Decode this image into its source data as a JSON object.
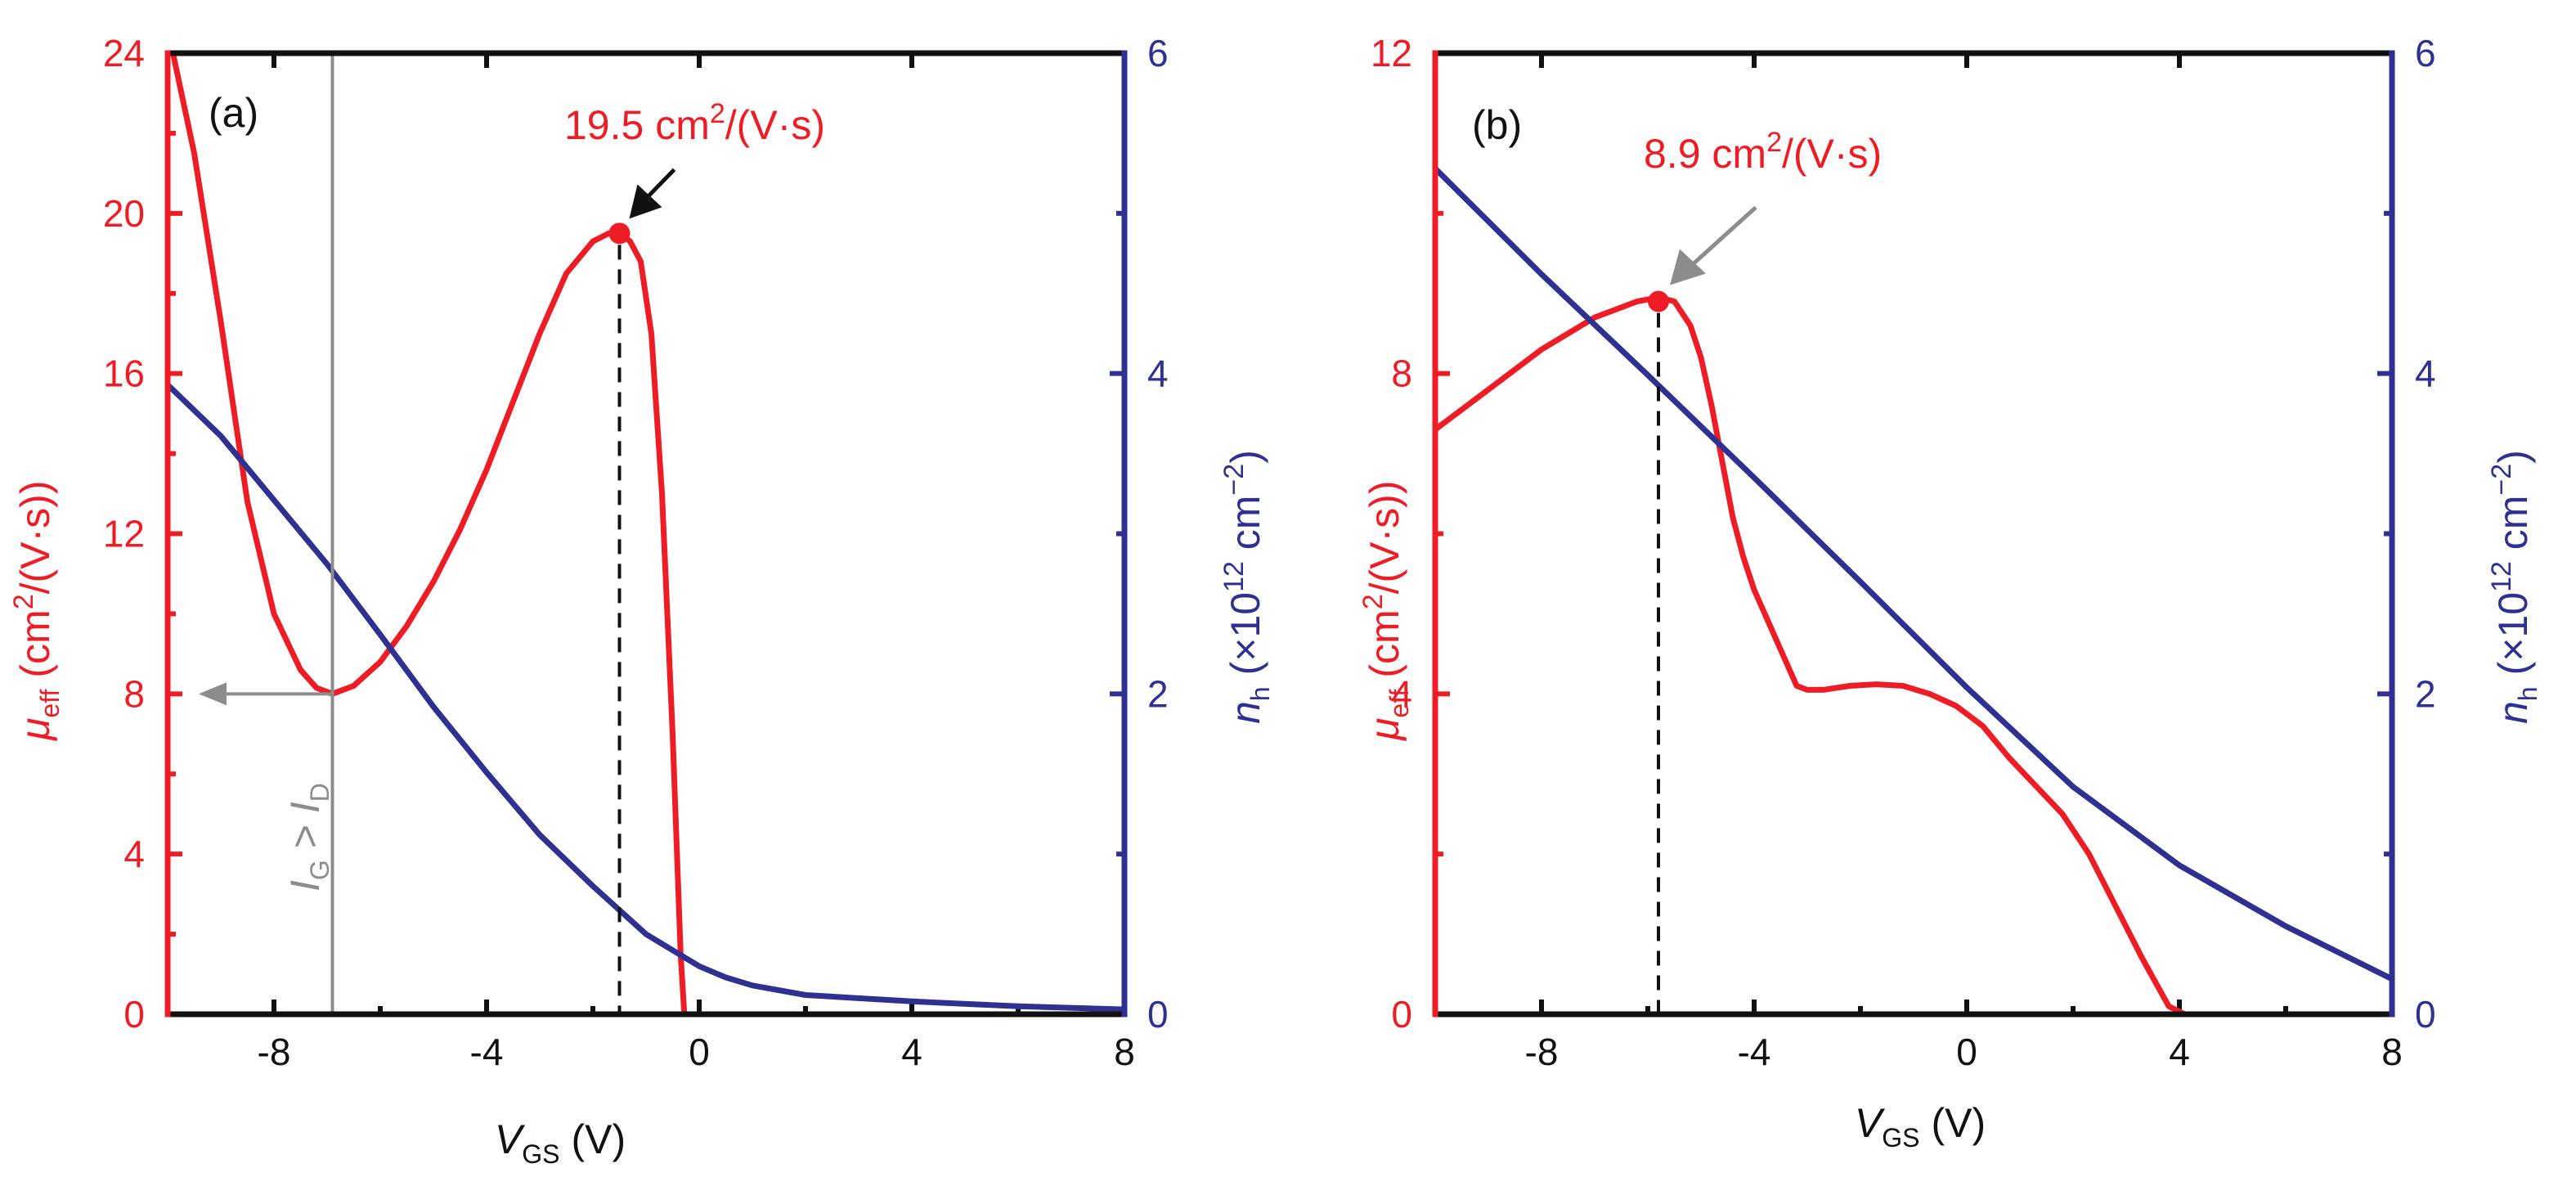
{
  "colors": {
    "mobility": "#ee1c24",
    "density": "#2e3192",
    "axis": "#111111",
    "marker_gray": "#8c8c8c"
  },
  "chart_data": [
    {
      "type": "line",
      "panel_label": "(a)",
      "xlabel": {
        "main": "V",
        "sub": "GS",
        "unit": "(V)"
      },
      "ylabel_left": {
        "main": "μ",
        "sub": "eff",
        "unit": "(cm",
        "sup": "2",
        "tail": "/(V·s))"
      },
      "ylabel_right": {
        "main": "n",
        "sub": "h",
        "pre": "(×10",
        "sup": "12",
        "mid": " cm",
        "sup2": "−2",
        "tail": ")"
      },
      "xlim": [
        -10,
        8
      ],
      "ylim_left": [
        0,
        24
      ],
      "ylim_right": [
        0,
        6
      ],
      "x_ticks": [
        "-8",
        "-4",
        "0",
        "4",
        "8"
      ],
      "y_ticks_left": [
        "0",
        "4",
        "8",
        "12",
        "16",
        "20",
        "24"
      ],
      "y_ticks_right": [
        "0",
        "2",
        "4",
        "6"
      ],
      "series": [
        {
          "axis": "left",
          "color": "#ee1c24",
          "x": [
            -9.9,
            -9.5,
            -9,
            -8.5,
            -8,
            -7.5,
            -7.2,
            -6.9,
            -6.5,
            -6,
            -5.5,
            -5,
            -4.5,
            -4,
            -3.5,
            -3,
            -2.5,
            -2,
            -1.7,
            -1.5,
            -1.3,
            -1.1,
            -0.9,
            -0.7,
            -0.5,
            -0.35,
            -0.28,
            -0.2,
            1.5,
            2,
            4,
            6,
            8
          ],
          "y": [
            24,
            21.5,
            17.3,
            12.8,
            10.0,
            8.6,
            8.15,
            8.0,
            8.2,
            8.8,
            9.7,
            10.8,
            12.1,
            13.6,
            15.3,
            17.0,
            18.5,
            19.3,
            19.5,
            19.5,
            19.3,
            18.8,
            17.0,
            13.0,
            7.0,
            1.5,
            0,
            0,
            0,
            0,
            0,
            0,
            0
          ]
        },
        {
          "axis": "right",
          "color": "#2e3192",
          "x": [
            -10,
            -9,
            -8,
            -7,
            -6,
            -5,
            -4,
            -3,
            -2,
            -1,
            -0.5,
            0,
            0.5,
            1,
            2,
            4,
            6,
            8
          ],
          "y": [
            3.93,
            3.61,
            3.21,
            2.81,
            2.37,
            1.92,
            1.51,
            1.12,
            0.8,
            0.5,
            0.4,
            0.3,
            0.23,
            0.18,
            0.12,
            0.08,
            0.05,
            0.03
          ]
        }
      ],
      "peak": {
        "x": -1.5,
        "y": 19.5,
        "label_main": "19.5 cm",
        "label_sup": "2",
        "label_tail": "/(V·s)"
      },
      "gate_limit": {
        "x": -6.9,
        "arrow_y": 8,
        "label_i1": "I",
        "label_s1": "G",
        "label_op": " > ",
        "label_i2": "I",
        "label_s2": "D"
      }
    },
    {
      "type": "line",
      "panel_label": "(b)",
      "xlabel": {
        "main": "V",
        "sub": "GS",
        "unit": "(V)"
      },
      "ylabel_left": {
        "main": "μ",
        "sub": "eff",
        "unit": "(cm",
        "sup": "2",
        "tail": "/(V·s))"
      },
      "ylabel_right": {
        "main": "n",
        "sub": "h",
        "pre": "(×10",
        "sup": "12",
        "mid": " cm",
        "sup2": "−2",
        "tail": ")"
      },
      "xlim": [
        -10,
        8
      ],
      "ylim_left": [
        0,
        12
      ],
      "ylim_right": [
        0,
        6
      ],
      "x_ticks": [
        "-8",
        "-4",
        "0",
        "4",
        "8"
      ],
      "y_ticks_left": [
        "0",
        "4",
        "8",
        "12"
      ],
      "y_ticks_right": [
        "0",
        "2",
        "4",
        "6"
      ],
      "series": [
        {
          "axis": "left",
          "color": "#ee1c24",
          "x": [
            -10,
            -9,
            -8,
            -7,
            -6.2,
            -5.8,
            -5.5,
            -5.2,
            -5,
            -4.8,
            -4.6,
            -4.4,
            -4.2,
            -4,
            -3.6,
            -3.2,
            -3,
            -2.7,
            -2.2,
            -1.7,
            -1.2,
            -0.7,
            -0.2,
            0.3,
            0.8,
            1.3,
            1.8,
            2.3,
            2.8,
            3.3,
            3.8,
            4.1,
            5,
            6,
            7,
            8
          ],
          "y": [
            7.3,
            7.8,
            8.3,
            8.7,
            8.9,
            8.95,
            8.9,
            8.6,
            8.2,
            7.6,
            6.9,
            6.2,
            5.7,
            5.3,
            4.7,
            4.1,
            4.05,
            4.05,
            4.1,
            4.12,
            4.1,
            4.0,
            3.85,
            3.6,
            3.2,
            2.85,
            2.5,
            2.0,
            1.35,
            0.7,
            0.1,
            0,
            0,
            0,
            0,
            0
          ]
        },
        {
          "axis": "right",
          "color": "#2e3192",
          "x": [
            -10,
            -8,
            -6,
            -4,
            -2,
            0,
            2,
            4,
            6,
            8
          ],
          "y": [
            5.28,
            4.62,
            3.99,
            3.35,
            2.7,
            2.04,
            1.42,
            0.93,
            0.55,
            0.22
          ]
        }
      ],
      "peak": {
        "x": -5.8,
        "y": 8.9,
        "label_main": "8.9 cm",
        "label_sup": "2",
        "label_tail": "/(V·s)"
      }
    }
  ]
}
